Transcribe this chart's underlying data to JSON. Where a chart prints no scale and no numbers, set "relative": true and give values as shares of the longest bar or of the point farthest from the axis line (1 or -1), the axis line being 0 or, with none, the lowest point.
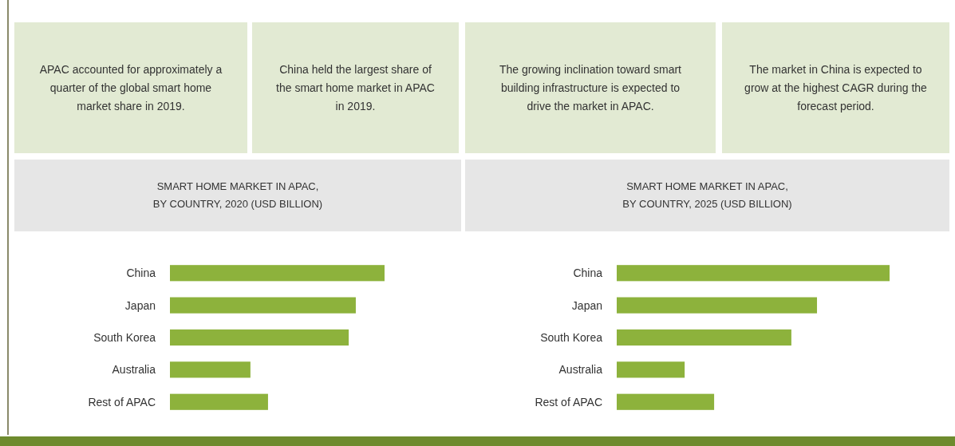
{
  "chart_data": [
    {
      "type": "other",
      "annotations": [
        "APAC accounted for approximately a quarter of the global smart home market share in 2019.",
        "China held the largest share of the smart home market in APAC in 2019.",
        "The growing inclination toward smart building infrastructure is expected to drive the market in APAC.",
        "The market in China is expected to grow at the highest CAGR during the forecast period."
      ]
    },
    {
      "type": "bar",
      "orientation": "horizontal",
      "relative": true,
      "title": "SMART HOME MARKET IN APAC,\nBY COUNTRY, 2020 (USD BILLION)",
      "categories": [
        "China",
        "Japan",
        "South Korea",
        "Australia",
        "Rest of APAC"
      ],
      "values": [
        1,
        0.866,
        0.833,
        0.375,
        0.457
      ],
      "color": "#8db23c"
    },
    {
      "type": "bar",
      "orientation": "horizontal",
      "relative": true,
      "title": "SMART HOME MARKET IN APAC,\nBY COUNTRY, 2025 (USD BILLION)",
      "categories": [
        "China",
        "Japan",
        "South Korea",
        "Australia",
        "Rest of APAC"
      ],
      "values": [
        1,
        0.734,
        0.64,
        0.249,
        0.357
      ],
      "color": "#8db23c"
    }
  ]
}
